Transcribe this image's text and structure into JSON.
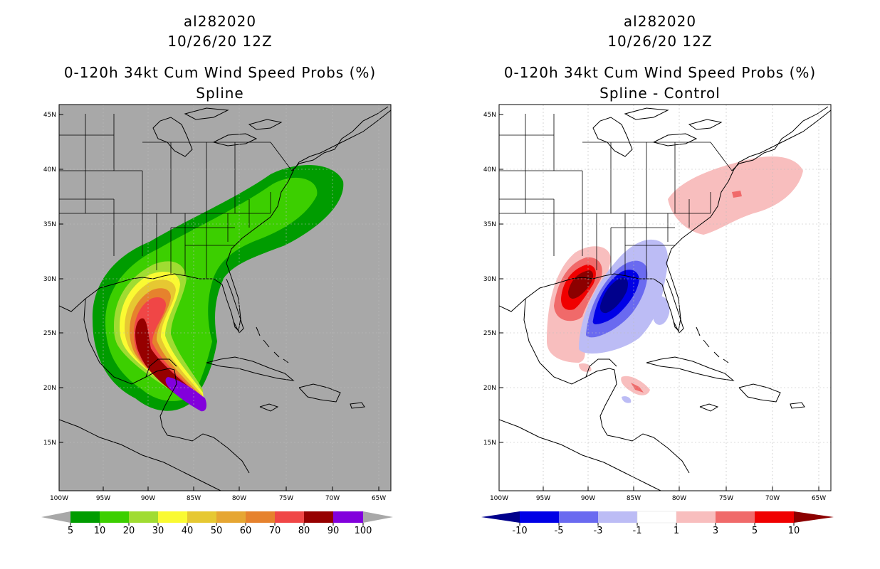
{
  "left": {
    "storm_id": "al282020",
    "init_time": "10/26/20 12Z",
    "product": "0-120h 34kt Cum Wind Speed Probs (%)",
    "subtitle": "Spline",
    "colorbar": {
      "labels": [
        "5",
        "10",
        "20",
        "30",
        "40",
        "50",
        "60",
        "70",
        "80",
        "90",
        "100"
      ],
      "colors": [
        "#009c00",
        "#3ccf00",
        "#a0dc32",
        "#fafa32",
        "#e6c832",
        "#e6a632",
        "#e6822d",
        "#f04646",
        "#960000",
        "#8200dc"
      ],
      "under_color": "#a8a8a8",
      "over_color": "#a8a8a8"
    }
  },
  "right": {
    "storm_id": "al282020",
    "init_time": "10/26/20 12Z",
    "product": "0-120h 34kt Cum Wind Speed Probs (%)",
    "subtitle": "Spline - Control",
    "colorbar": {
      "labels": [
        "-10",
        "-5",
        "-3",
        "-1",
        "1",
        "3",
        "5",
        "10"
      ],
      "colors": [
        "#0000e6",
        "#6a6af0",
        "#bcbcf5",
        "#ffffff",
        "#f8bebe",
        "#f06a6a",
        "#f00000"
      ],
      "under_color": "#00008c",
      "over_color": "#8c0000"
    }
  },
  "axes": {
    "lat_labels": [
      "45N",
      "40N",
      "35N",
      "30N",
      "25N",
      "20N",
      "15N"
    ],
    "lon_labels": [
      "100W",
      "95W",
      "90W",
      "85W",
      "80W",
      "75W",
      "70W",
      "65W"
    ]
  },
  "colors": {
    "land_ocean_bg": "#a8a8a8",
    "grid": "#bbbbbb"
  }
}
